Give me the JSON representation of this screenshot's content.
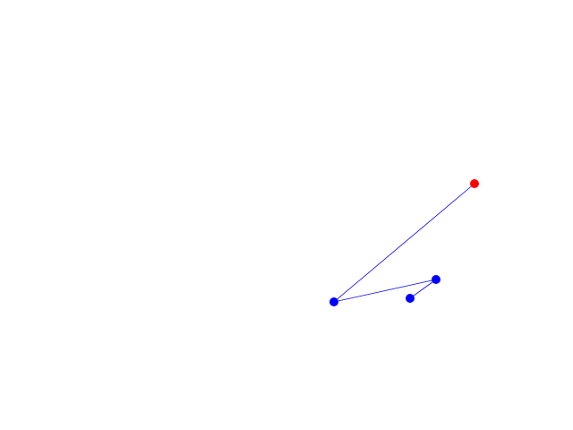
{
  "path": {
    "line_color": "#0000ff",
    "points": [
      {
        "color": "#0000ff"
      },
      {
        "color": "#0000ff"
      },
      {
        "color": "#0000ff"
      },
      {
        "color": "#ff0000"
      }
    ]
  }
}
